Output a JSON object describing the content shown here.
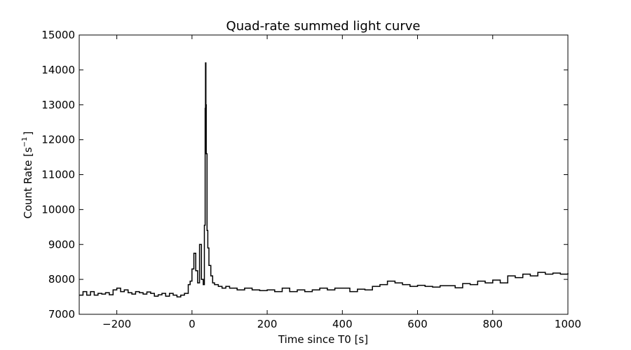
{
  "chart_data": {
    "type": "line",
    "style": "step",
    "title": "Quad-rate summed light curve",
    "xlabel": "Time since T0 [s]",
    "ylabel_main": "Count Rate [s",
    "ylabel_sup": "−1",
    "ylabel_end": "]",
    "xlim": [
      -300,
      1000
    ],
    "ylim": [
      7000,
      15000
    ],
    "xticks": [
      {
        "value": -200,
        "label": "−200"
      },
      {
        "value": 0,
        "label": "0"
      },
      {
        "value": 200,
        "label": "200"
      },
      {
        "value": 400,
        "label": "400"
      },
      {
        "value": 600,
        "label": "600"
      },
      {
        "value": 800,
        "label": "800"
      },
      {
        "value": 1000,
        "label": "1000"
      }
    ],
    "yticks": [
      {
        "value": 7000,
        "label": "7000"
      },
      {
        "value": 8000,
        "label": "8000"
      },
      {
        "value": 9000,
        "label": "9000"
      },
      {
        "value": 10000,
        "label": "10000"
      },
      {
        "value": 11000,
        "label": "11000"
      },
      {
        "value": 12000,
        "label": "12000"
      },
      {
        "value": 13000,
        "label": "13000"
      },
      {
        "value": 14000,
        "label": "14000"
      },
      {
        "value": 15000,
        "label": "15000"
      }
    ],
    "grid": false,
    "line_color": "#000000",
    "series": [
      {
        "x": [
          -300,
          -290,
          -280,
          -270,
          -260,
          -250,
          -240,
          -230,
          -220,
          -210,
          -200,
          -190,
          -180,
          -170,
          -160,
          -150,
          -140,
          -130,
          -120,
          -110,
          -100,
          -90,
          -80,
          -70,
          -60,
          -50,
          -40,
          -30,
          -20,
          -10,
          -5,
          0,
          5,
          10,
          15,
          20,
          25,
          30,
          33,
          35,
          36,
          37,
          38,
          40,
          42,
          45,
          50,
          55,
          60,
          70,
          80,
          90,
          100,
          120,
          140,
          160,
          180,
          200,
          220,
          240,
          260,
          280,
          300,
          320,
          340,
          360,
          380,
          400,
          420,
          440,
          460,
          480,
          500,
          520,
          540,
          560,
          580,
          600,
          620,
          640,
          660,
          680,
          700,
          720,
          740,
          760,
          780,
          800,
          820,
          840,
          860,
          880,
          900,
          920,
          940,
          960,
          980,
          1000
        ],
        "y": [
          7550,
          7650,
          7550,
          7650,
          7550,
          7600,
          7580,
          7620,
          7560,
          7700,
          7750,
          7650,
          7700,
          7620,
          7580,
          7650,
          7620,
          7580,
          7640,
          7600,
          7520,
          7560,
          7600,
          7520,
          7600,
          7550,
          7500,
          7550,
          7600,
          7850,
          7950,
          8300,
          8750,
          8250,
          7900,
          9000,
          8000,
          7850,
          9550,
          12900,
          14200,
          13000,
          11600,
          9400,
          8900,
          8400,
          8100,
          7900,
          7850,
          7800,
          7750,
          7800,
          7750,
          7700,
          7750,
          7700,
          7680,
          7700,
          7650,
          7750,
          7650,
          7700,
          7650,
          7700,
          7750,
          7700,
          7750,
          7750,
          7650,
          7720,
          7700,
          7800,
          7850,
          7950,
          7900,
          7850,
          7800,
          7830,
          7800,
          7780,
          7820,
          7820,
          7760,
          7880,
          7850,
          7950,
          7900,
          7980,
          7900,
          8100,
          8050,
          8150,
          8100,
          8200,
          8150,
          8180,
          8150,
          8180
        ]
      }
    ]
  }
}
